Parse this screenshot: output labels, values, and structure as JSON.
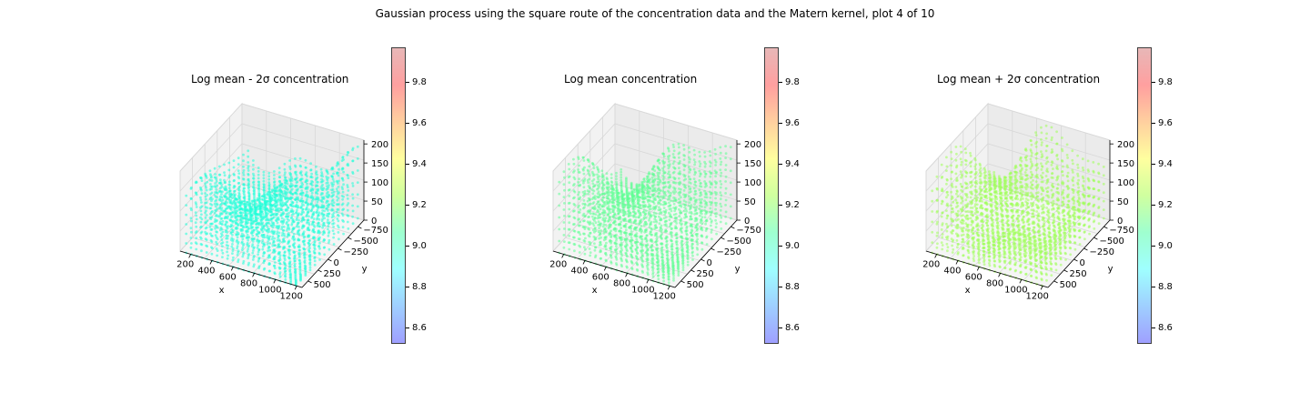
{
  "figure_title": "Gaussian process using the square route of the concentration data and the Matern kernel, plot 4 of 10",
  "colormap": [
    "#8080ff",
    "#80c0ff",
    "#80ffff",
    "#80ffc0",
    "#c0ff80",
    "#ffff80",
    "#ffc080",
    "#ff8080",
    "#e0a0a0"
  ],
  "chart_data": [
    {
      "type": "scatter",
      "title": "Log mean - 2σ concentration",
      "xlabel": "x",
      "ylabel": "y",
      "zlabel": "",
      "xticks": [
        "200",
        "400",
        "600",
        "800",
        "1000",
        "1200"
      ],
      "yticks": [
        "−750",
        "−500",
        "−250",
        "0",
        "250",
        "500"
      ],
      "zticks": [
        "0",
        "50",
        "100",
        "150",
        "200"
      ],
      "xlim": [
        100,
        1250
      ],
      "ylim": [
        -900,
        650
      ],
      "zlim": [
        0,
        210
      ],
      "colorbar_ticks": [
        "8.6",
        "8.8",
        "9.0",
        "9.2",
        "9.4",
        "9.6",
        "9.8"
      ],
      "colorbar_range": [
        8.53,
        9.98
      ],
      "series_value": 9.1,
      "point_color": "#1effd8"
    },
    {
      "type": "scatter",
      "title": "Log mean concentration",
      "xlabel": "x",
      "ylabel": "y",
      "zlabel": "",
      "xticks": [
        "200",
        "400",
        "600",
        "800",
        "1000",
        "1200"
      ],
      "yticks": [
        "−750",
        "−500",
        "−250",
        "0",
        "250",
        "500"
      ],
      "zticks": [
        "0",
        "50",
        "100",
        "150",
        "200"
      ],
      "xlim": [
        100,
        1250
      ],
      "ylim": [
        -900,
        650
      ],
      "zlim": [
        0,
        210
      ],
      "colorbar_ticks": [
        "8.6",
        "8.8",
        "9.0",
        "9.2",
        "9.4",
        "9.6",
        "9.8"
      ],
      "colorbar_range": [
        8.53,
        9.98
      ],
      "series_value": 9.25,
      "point_color": "#5fff94"
    },
    {
      "type": "scatter",
      "title": "Log mean + 2σ concentration",
      "xlabel": "x",
      "ylabel": "y",
      "zlabel": "",
      "xticks": [
        "200",
        "400",
        "600",
        "800",
        "1000",
        "1200"
      ],
      "yticks": [
        "−750",
        "−500",
        "−250",
        "0",
        "250",
        "500"
      ],
      "zticks": [
        "0",
        "50",
        "100",
        "150",
        "200"
      ],
      "xlim": [
        100,
        1250
      ],
      "ylim": [
        -900,
        650
      ],
      "zlim": [
        0,
        210
      ],
      "colorbar_ticks": [
        "8.6",
        "8.8",
        "9.0",
        "9.2",
        "9.4",
        "9.6",
        "9.8"
      ],
      "colorbar_range": [
        8.53,
        9.98
      ],
      "series_value": 9.38,
      "point_color": "#9fff58"
    }
  ]
}
